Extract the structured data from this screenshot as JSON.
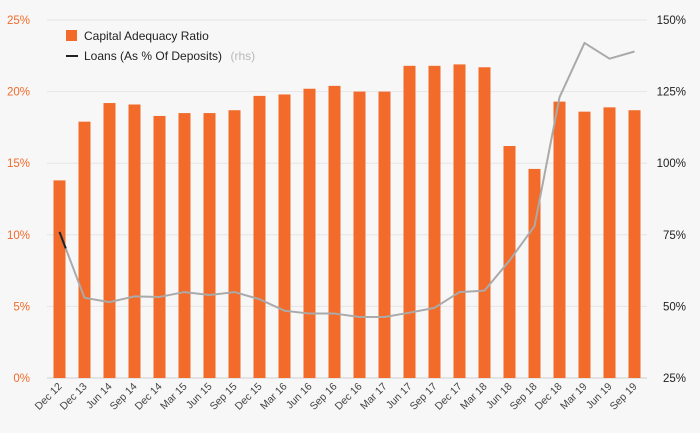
{
  "chart_data": {
    "type": "bar",
    "colors": {
      "bar": "#f26b2a",
      "line_gray": "#aaaaaa",
      "line_dark": "#222222",
      "grid": "#e6e6e6",
      "left_tick": "#f26b2a"
    },
    "categories": [
      "Dec 12",
      "Dec 13",
      "Jun 14",
      "Sep 14",
      "Dec 14",
      "Mar 15",
      "Jun 15",
      "Sep 15",
      "Dec 15",
      "Mar 16",
      "Jun 16",
      "Sep 16",
      "Dec 16",
      "Mar 17",
      "Jun 17",
      "Sep 17",
      "Dec 17",
      "Mar 18",
      "Jun 18",
      "Sep 18",
      "Dec 18",
      "Mar 19",
      "Jun 19",
      "Sep 19"
    ],
    "series": [
      {
        "name": "Capital Adequacy Ratio",
        "axis": "left",
        "type": "bar",
        "values": [
          13.8,
          17.9,
          19.2,
          19.1,
          18.3,
          18.5,
          18.5,
          18.7,
          19.7,
          19.8,
          20.2,
          20.4,
          20.0,
          20.0,
          21.8,
          21.8,
          21.9,
          21.7,
          16.2,
          14.6,
          19.3,
          18.6,
          18.9,
          18.7
        ]
      },
      {
        "name": "Loans (As % Of Deposits)",
        "name_suffix": "(rhs)",
        "axis": "right",
        "type": "line",
        "values": [
          76,
          53,
          51.5,
          53.5,
          53.3,
          55,
          54,
          55,
          52.5,
          48.5,
          47.5,
          47.5,
          46.3,
          46.3,
          47.8,
          49.5,
          55,
          55.5,
          66,
          78,
          123,
          142,
          136.5,
          139
        ]
      }
    ],
    "left_axis": {
      "ticks": [
        "0%",
        "5%",
        "10%",
        "15%",
        "20%",
        "25%"
      ],
      "ylim": [
        0,
        25
      ]
    },
    "right_axis": {
      "ticks": [
        "25%",
        "50%",
        "75%",
        "100%",
        "125%",
        "150%"
      ],
      "ylim": [
        25,
        150
      ]
    },
    "xlabel": "",
    "ylabel": "",
    "title": "",
    "legend": {
      "items": [
        "Capital Adequacy Ratio",
        "Loans (As % Of Deposits)"
      ],
      "suffix": "(rhs)",
      "placement": "top-left"
    }
  }
}
